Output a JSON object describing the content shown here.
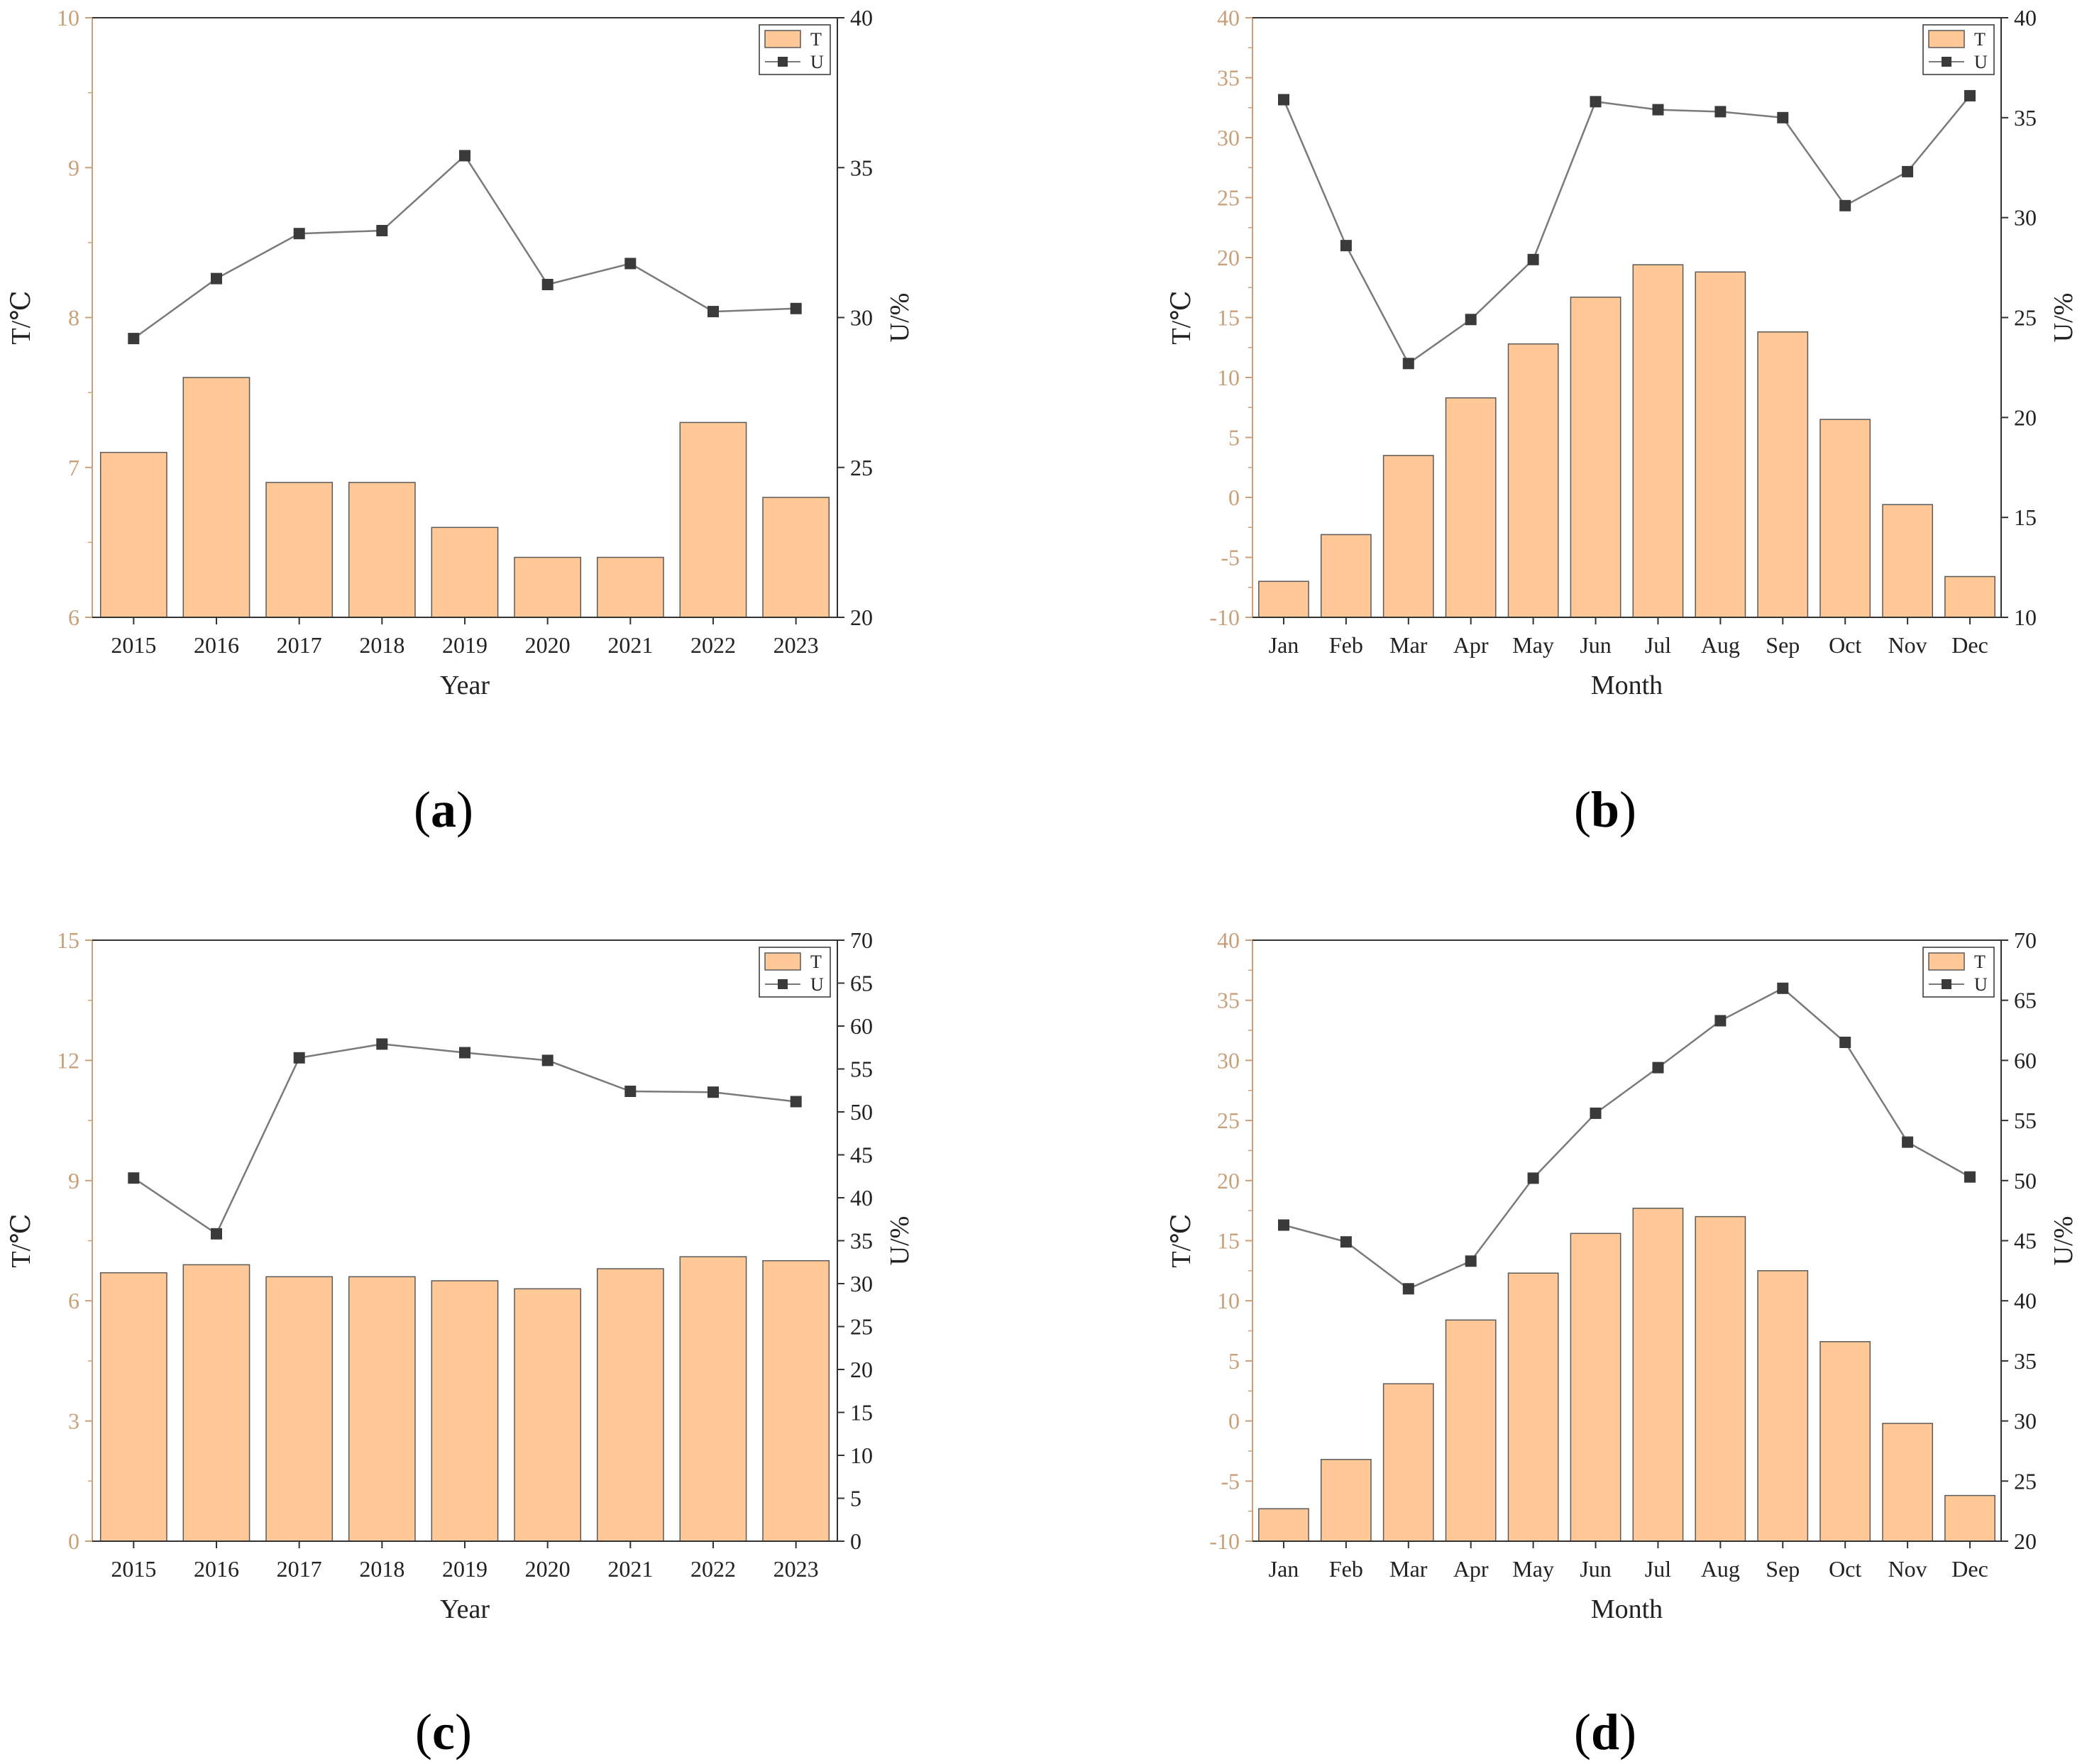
{
  "colors": {
    "bar_fill": "#FFC896",
    "bar_stroke": "#5a5a5a",
    "line": "#7a7a7a",
    "marker": "#3a3a3a",
    "left_axis": "#c8a07a",
    "right_axis": "#222222"
  },
  "chart_data": [
    {
      "panel": "a",
      "type": "bar+line",
      "xlabel": "Year",
      "ylabel_left": "T/℃",
      "ylabel_right": "U/%",
      "categories": [
        "2015",
        "2016",
        "2017",
        "2018",
        "2019",
        "2020",
        "2021",
        "2022",
        "2023"
      ],
      "ylim_left": [
        6,
        10
      ],
      "yticks_left": [
        6,
        7,
        8,
        9,
        10
      ],
      "ylim_right": [
        20,
        40
      ],
      "yticks_right": [
        20,
        25,
        30,
        35,
        40
      ],
      "series": [
        {
          "name": "T",
          "type": "bar",
          "axis": "left",
          "values": [
            7.1,
            7.6,
            6.9,
            6.9,
            6.6,
            6.4,
            6.4,
            7.3,
            6.8
          ]
        },
        {
          "name": "U",
          "type": "line",
          "axis": "right",
          "values": [
            29.3,
            31.3,
            32.8,
            32.9,
            35.4,
            31.1,
            31.8,
            30.2,
            30.3
          ]
        }
      ],
      "legend": [
        "T",
        "U"
      ],
      "legend_position": "top-right"
    },
    {
      "panel": "b",
      "type": "bar+line",
      "xlabel": "Month",
      "ylabel_left": "T/℃",
      "ylabel_right": "U/%",
      "categories": [
        "Jan",
        "Feb",
        "Mar",
        "Apr",
        "May",
        "Jun",
        "Jul",
        "Aug",
        "Sep",
        "Oct",
        "Nov",
        "Dec"
      ],
      "ylim_left": [
        -10,
        40
      ],
      "yticks_left": [
        -10,
        -5,
        0,
        5,
        10,
        15,
        20,
        25,
        30,
        35,
        40
      ],
      "ylim_right": [
        10,
        40
      ],
      "yticks_right": [
        10,
        15,
        20,
        25,
        30,
        35,
        40
      ],
      "series": [
        {
          "name": "T",
          "type": "bar",
          "axis": "left",
          "values": [
            -7.0,
            -3.1,
            3.5,
            8.3,
            12.8,
            16.7,
            19.4,
            18.8,
            13.8,
            6.5,
            -0.6,
            -6.6
          ]
        },
        {
          "name": "U",
          "type": "line",
          "axis": "right",
          "values": [
            35.9,
            28.6,
            22.7,
            24.9,
            27.9,
            35.8,
            35.4,
            35.3,
            35.0,
            30.6,
            32.3,
            36.1
          ]
        }
      ],
      "legend": [
        "T",
        "U"
      ],
      "legend_position": "top-right"
    },
    {
      "panel": "c",
      "type": "bar+line",
      "xlabel": "Year",
      "ylabel_left": "T/℃",
      "ylabel_right": "U/%",
      "categories": [
        "2015",
        "2016",
        "2017",
        "2018",
        "2019",
        "2020",
        "2021",
        "2022",
        "2023"
      ],
      "ylim_left": [
        0,
        15
      ],
      "yticks_left": [
        0,
        3,
        6,
        9,
        12,
        15
      ],
      "ylim_right": [
        0,
        70
      ],
      "yticks_right": [
        0,
        5,
        10,
        15,
        20,
        25,
        30,
        35,
        40,
        45,
        50,
        55,
        60,
        65,
        70
      ],
      "series": [
        {
          "name": "T",
          "type": "bar",
          "axis": "left",
          "values": [
            6.7,
            6.9,
            6.6,
            6.6,
            6.5,
            6.3,
            6.8,
            7.1,
            7.0
          ]
        },
        {
          "name": "U",
          "type": "line",
          "axis": "right",
          "values": [
            42.3,
            35.8,
            56.3,
            57.9,
            56.9,
            56.0,
            52.4,
            52.3,
            51.2
          ]
        }
      ],
      "legend": [
        "T",
        "U"
      ],
      "legend_position": "top-right"
    },
    {
      "panel": "d",
      "type": "bar+line",
      "xlabel": "Month",
      "ylabel_left": "T/℃",
      "ylabel_right": "U/%",
      "categories": [
        "Jan",
        "Feb",
        "Mar",
        "Apr",
        "May",
        "Jun",
        "Jul",
        "Aug",
        "Sep",
        "Oct",
        "Nov",
        "Dec"
      ],
      "ylim_left": [
        -10,
        40
      ],
      "yticks_left": [
        -10,
        -5,
        0,
        5,
        10,
        15,
        20,
        25,
        30,
        35,
        40
      ],
      "ylim_right": [
        20,
        70
      ],
      "yticks_right": [
        20,
        25,
        30,
        35,
        40,
        45,
        50,
        55,
        60,
        65,
        70
      ],
      "series": [
        {
          "name": "T",
          "type": "bar",
          "axis": "left",
          "values": [
            -7.3,
            -3.2,
            3.1,
            8.4,
            12.3,
            15.6,
            17.7,
            17.0,
            12.5,
            6.6,
            -0.2,
            -6.2
          ]
        },
        {
          "name": "U",
          "type": "line",
          "axis": "right",
          "values": [
            46.3,
            44.9,
            41.0,
            43.3,
            50.2,
            55.6,
            59.4,
            63.3,
            66.0,
            61.5,
            53.2,
            50.3
          ]
        }
      ],
      "legend": [
        "T",
        "U"
      ],
      "legend_position": "top-right"
    }
  ],
  "panel_labels": [
    {
      "open": "(",
      "letter": "a",
      "close": ")"
    },
    {
      "open": "(",
      "letter": "b",
      "close": ")"
    },
    {
      "open": "(",
      "letter": "c",
      "close": ")"
    },
    {
      "open": "(",
      "letter": "d",
      "close": ")"
    }
  ]
}
